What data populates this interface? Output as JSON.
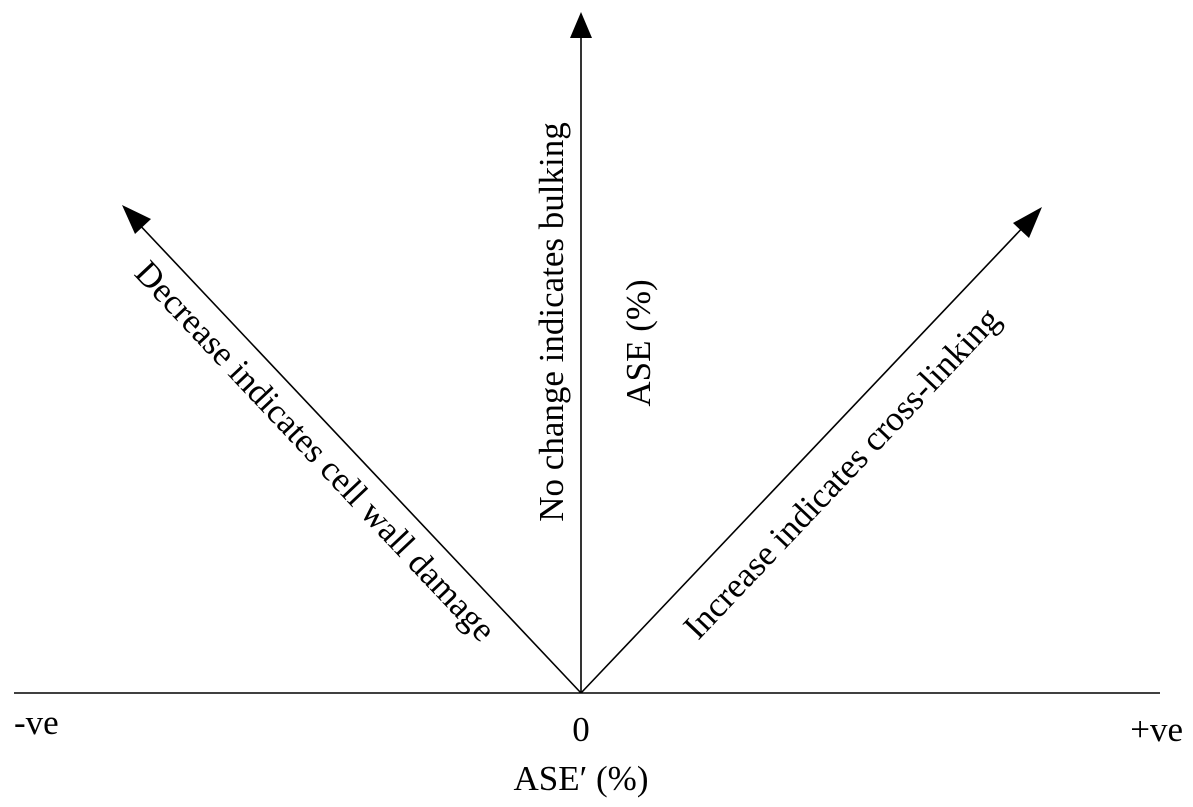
{
  "diagram": {
    "vertical_arrow_label": "No change indicates bulking",
    "left_arrow_label": "Decrease indicates cell wall damage",
    "right_arrow_label": "Increase indicates cross-linking",
    "y_axis_label": "ASE (%)",
    "x_axis_label": "ASE′ (%)",
    "x_origin_label": "0",
    "x_negative_label": "-ve",
    "x_positive_label": "+ve"
  }
}
